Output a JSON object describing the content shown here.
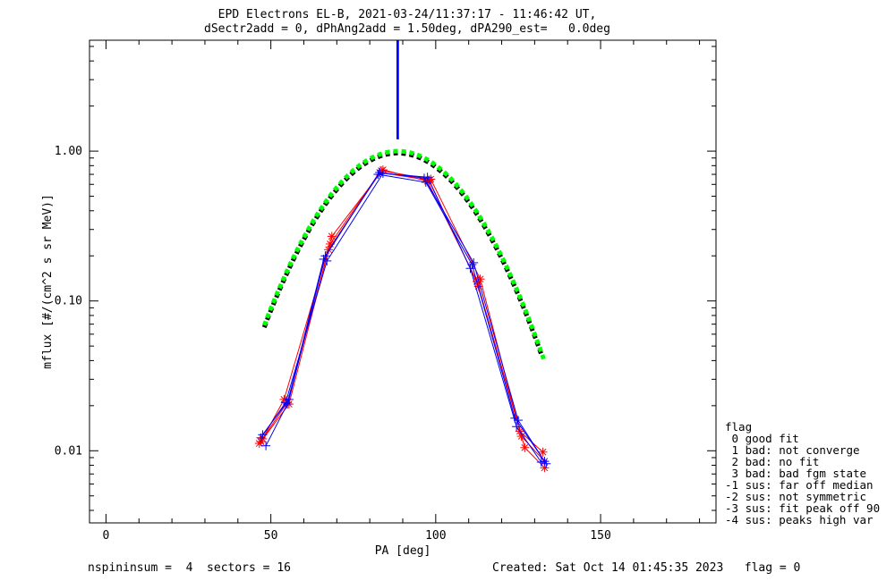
{
  "title": {
    "line1": "EPD Electrons EL-B, 2021-03-24/11:37:17 - 11:46:42 UT,",
    "line2": "dSectr2add = 0, dPhAng2add = 1.50deg, dPA290_est=   0.0deg"
  },
  "footer": {
    "left": "nspininsum =  4  sectors = 16",
    "right": "Created: Sat Oct 14 01:45:35 2023   flag = 0"
  },
  "legend": {
    "title": "flag",
    "items": [
      " 0 good fit",
      " 1 bad: not converge",
      " 2 bad: no fit",
      " 3 bad: bad fgm state",
      "-1 sus: far off median",
      "-2 sus: not symmetric",
      "-3 sus: fit peak off 90",
      "-4 sus: peaks high var"
    ]
  },
  "colors": {
    "red": "#ff0000",
    "blue": "#0000ff",
    "green": "#00ff00",
    "black": "#000000",
    "marker_line": "#4040ff"
  },
  "chart_data": {
    "type": "line",
    "xlabel": "PA [deg]",
    "ylabel": "mflux [#/(cm^2 s sr MeV)]",
    "xlim": [
      -5,
      185
    ],
    "ylim": [
      0.0033,
      5.5
    ],
    "yscale": "log",
    "x_ticks": [
      0,
      50,
      100,
      150
    ],
    "x_tick_labels": [
      "0",
      "50",
      "100",
      "150"
    ],
    "y_ticks": [
      0.01,
      0.1,
      1.0
    ],
    "y_tick_labels": [
      "0.01",
      "0.10",
      "1.00"
    ],
    "vertical_marker": {
      "x": 88.5,
      "y_from": 1.2,
      "y_to": 5.5
    },
    "series": [
      {
        "color": "red",
        "marker": "*",
        "x": [
          46.5,
          55,
          68,
          83,
          98,
          113,
          127,
          133
        ],
        "y": [
          0.0112,
          0.021,
          0.24,
          0.72,
          0.64,
          0.125,
          0.0105,
          0.0077
        ]
      },
      {
        "color": "red",
        "marker": "*",
        "x": [
          47.5,
          54,
          68.5,
          84,
          97.5,
          112.5,
          126,
          133
        ],
        "y": [
          0.012,
          0.022,
          0.27,
          0.75,
          0.63,
          0.135,
          0.0125,
          0.0085
        ]
      },
      {
        "color": "red",
        "marker": "*",
        "x": [
          47,
          55.5,
          67.5,
          83.5,
          98.5,
          113.5,
          125.5,
          132.5
        ],
        "y": [
          0.0115,
          0.0205,
          0.22,
          0.74,
          0.65,
          0.14,
          0.0135,
          0.0098
        ]
      },
      {
        "color": "blue",
        "marker": "+",
        "x": [
          48.5,
          55,
          66,
          82.5,
          97,
          111,
          124,
          133.5
        ],
        "y": [
          0.0108,
          0.0205,
          0.19,
          0.7,
          0.62,
          0.175,
          0.0165,
          0.0082
        ]
      },
      {
        "color": "blue",
        "marker": "+",
        "x": [
          47.5,
          55.5,
          66.5,
          83,
          96.5,
          111.5,
          125,
          133
        ],
        "y": [
          0.0128,
          0.022,
          0.2,
          0.72,
          0.66,
          0.18,
          0.016,
          0.0085
        ]
      },
      {
        "color": "blue",
        "marker": "+",
        "x": [
          47,
          54.5,
          67,
          84,
          97.5,
          110.5,
          124.5,
          132
        ],
        "y": [
          0.0122,
          0.021,
          0.185,
          0.71,
          0.67,
          0.165,
          0.0145,
          0.0084
        ]
      }
    ],
    "fit_curves": [
      {
        "color": "black",
        "peak_x": 88.5,
        "peak_y": 0.97,
        "x_range": [
          48,
          132
        ]
      },
      {
        "color": "green",
        "peak_x": 88.5,
        "peak_y": 1.0,
        "x_range": [
          48,
          133
        ]
      }
    ]
  }
}
